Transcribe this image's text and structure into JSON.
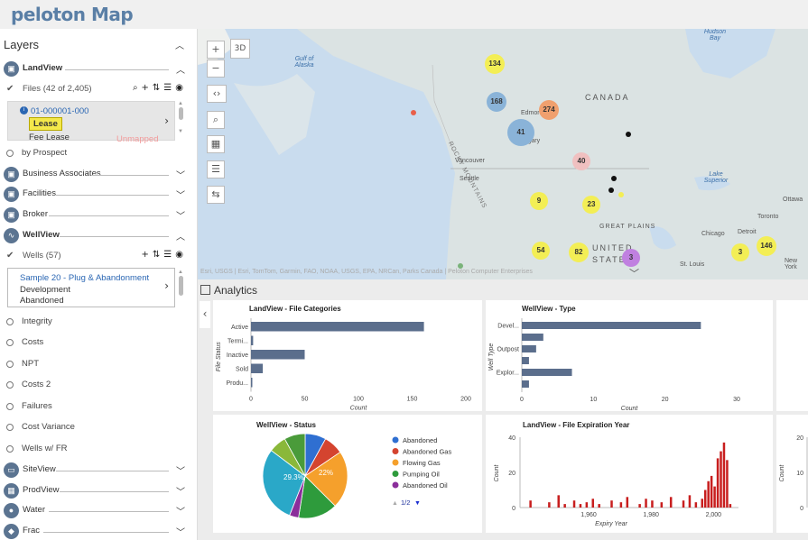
{
  "app": {
    "logo": "peloton Map"
  },
  "sidebar": {
    "title": "Layers",
    "landview": {
      "label": "LandView"
    },
    "files": {
      "label": "Files (42 of 2,405)"
    },
    "selected_file": {
      "id": "01-000001-000",
      "badge": "Lease",
      "type": "Fee Lease",
      "status": "Unmapped"
    },
    "by_prospect": "by Prospect",
    "land_groups": [
      "Business Associates",
      "Facilities",
      "Broker"
    ],
    "wellview": {
      "label": "WellView"
    },
    "wells": {
      "label": "Wells (57)"
    },
    "sample": {
      "title": "Sample 20 - Plug & Abandonment",
      "items": [
        "Development",
        "Abandoned"
      ]
    },
    "well_options": [
      "Integrity",
      "Costs",
      "NPT",
      "Costs 2",
      "Failures",
      "Cost Variance",
      "Wells w/ FR"
    ],
    "bottom_groups": [
      "SiteView",
      "ProdView",
      "Water",
      "Frac"
    ]
  },
  "map": {
    "btn_3d": "3D",
    "zoom_in": "+",
    "zoom_out": "−",
    "labels": {
      "gulf": "Gulf of Alaska",
      "canada": "CANADA",
      "hudson": "Hudson Bay",
      "rocky": "ROCKY MOUNTAINS",
      "edmonton": "Edmonton",
      "calgary": "Calgary",
      "vancouver": "Vancouver",
      "seattle": "Seattle",
      "great_plains": "GREAT PLAINS",
      "united_states": "UNITED STATES",
      "lake_superior": "Lake Superior",
      "ottawa": "Ottawa",
      "toronto": "Toronto",
      "chicago": "Chicago",
      "detroit": "Detroit",
      "new_york": "New York",
      "st_louis": "St. Louis"
    },
    "clusters": [
      "134",
      "168",
      "274",
      "41",
      "40",
      "9",
      "23",
      "54",
      "82",
      "3",
      "146",
      "3"
    ],
    "attribution": "Esri, USGS | Esri, TomTom, Garmin, FAO, NOAA, USGS, EPA, NRCan, Parks Canada | Peloton Computer Enterprises"
  },
  "analytics": {
    "title": "Analytics"
  },
  "chart_data": [
    {
      "type": "bar",
      "orientation": "horizontal",
      "title": "LandView - File Categories",
      "ylabel": "File Status",
      "xlabel": "Count",
      "categories": [
        "Active",
        "Termi...",
        "Inactive",
        "Sold",
        "Produ..."
      ],
      "values": [
        161,
        2,
        50,
        11,
        1
      ],
      "xlim": [
        0,
        200
      ],
      "xticks": [
        "0",
        "50",
        "100",
        "150",
        "200"
      ]
    },
    {
      "type": "bar",
      "orientation": "horizontal",
      "title": "WellView - Type",
      "ylabel": "Well Type",
      "xlabel": "Count",
      "categories": [
        "Devel...",
        "",
        "Outpost",
        "",
        "Explor...",
        ""
      ],
      "values": [
        25,
        3,
        2,
        1,
        7,
        1
      ],
      "xlim": [
        0,
        30
      ],
      "xticks": [
        "0",
        "10",
        "20",
        "30"
      ]
    },
    {
      "type": "pie",
      "title": "WellView - Status",
      "slices": [
        {
          "name": "Abandoned",
          "value": 8,
          "color": "#2f6fd1"
        },
        {
          "name": "Abandoned Gas",
          "value": 7.5,
          "color": "#d4442f"
        },
        {
          "name": "Flowing Gas",
          "value": 22,
          "color": "#f5a02c"
        },
        {
          "name": "Pumping Oil",
          "value": 15,
          "color": "#2e9b3c"
        },
        {
          "name": "Abandoned Oil",
          "value": 3.5,
          "color": "#8b2e9b"
        },
        {
          "name": "",
          "value": 29.3,
          "color": "#2aa8c8"
        },
        {
          "name": "",
          "value": 6.7,
          "color": "#8ab83a"
        },
        {
          "name": "",
          "value": 8,
          "color": "#4a9b3a"
        }
      ],
      "data_labels": [
        "29.3%",
        "22%"
      ],
      "legend_page": "1/2"
    },
    {
      "type": "bar",
      "title": "LandView - File Expiration Year",
      "xlabel": "Expiry Year",
      "ylabel": "Count",
      "ylim": [
        0,
        40
      ],
      "yticks": [
        "0",
        "20",
        "40"
      ],
      "xticks": [
        "1,960",
        "1,980",
        "2,000"
      ],
      "x": [
        1941,
        1947,
        1950,
        1952,
        1955,
        1957,
        1959,
        1961,
        1963,
        1967,
        1970,
        1972,
        1976,
        1978,
        1980,
        1983,
        1986,
        1990,
        1992,
        1994,
        1996,
        1997,
        1998,
        1999,
        2000,
        2001,
        2002,
        2003,
        2004,
        2005
      ],
      "values": [
        4,
        3,
        7,
        2,
        4,
        2,
        3,
        5,
        2,
        4,
        3,
        6,
        2,
        5,
        4,
        3,
        6,
        4,
        7,
        3,
        5,
        10,
        15,
        18,
        12,
        28,
        32,
        37,
        27,
        2
      ]
    },
    {
      "type": "bar",
      "title": "",
      "ylabel": "Count",
      "yticks": [
        "0",
        "10",
        "20"
      ],
      "values": []
    }
  ],
  "colors": {
    "bar": "#5b6e8c",
    "hist": "#c81e1e",
    "cluster_yellow": "#f3ee55",
    "cluster_orange": "#f0a06e",
    "cluster_blue": "#8ab3d8",
    "cluster_pink": "#f0c0c0"
  }
}
